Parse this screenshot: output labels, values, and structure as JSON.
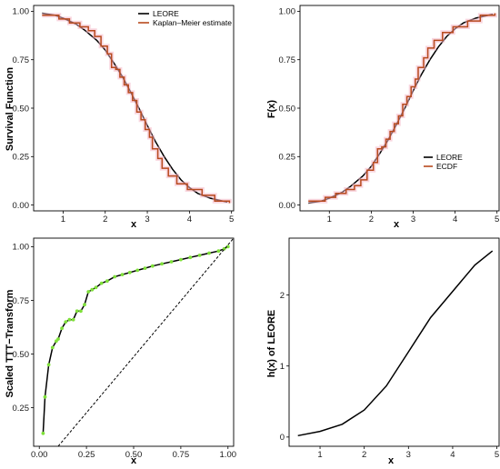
{
  "chart_data": [
    {
      "type": "line",
      "panel": "top-left",
      "xlabel": "x",
      "ylabel": "Survival Function",
      "xlim": [
        0.3,
        5.05
      ],
      "ylim": [
        -0.03,
        1.03
      ],
      "xticks": [
        "1",
        "2",
        "3",
        "4",
        "5"
      ],
      "yticks": [
        "0.00",
        "0.25",
        "0.50",
        "0.75",
        "1.00"
      ],
      "legend_position": "top-right",
      "series": [
        {
          "name": "LEORE",
          "color": "#000000",
          "style": "smooth",
          "x": [
            0.5,
            0.8,
            1.0,
            1.3,
            1.5,
            1.8,
            2.0,
            2.2,
            2.4,
            2.6,
            2.8,
            3.0,
            3.2,
            3.4,
            3.6,
            3.8,
            4.0,
            4.2,
            4.5,
            4.9
          ],
          "y": [
            0.99,
            0.98,
            0.965,
            0.935,
            0.905,
            0.85,
            0.8,
            0.735,
            0.665,
            0.585,
            0.5,
            0.41,
            0.325,
            0.25,
            0.185,
            0.13,
            0.09,
            0.06,
            0.035,
            0.015
          ]
        },
        {
          "name": "Kaplan–Meier estimate",
          "color": "#b84a1e",
          "style": "step",
          "x": [
            0.5,
            0.9,
            1.15,
            1.4,
            1.6,
            1.75,
            1.9,
            2.05,
            2.15,
            2.25,
            2.35,
            2.45,
            2.55,
            2.65,
            2.75,
            2.85,
            2.95,
            3.05,
            3.12,
            3.25,
            3.35,
            3.5,
            3.7,
            3.95,
            4.3,
            4.6,
            4.95
          ],
          "y": [
            0.98,
            0.96,
            0.94,
            0.92,
            0.9,
            0.87,
            0.82,
            0.78,
            0.71,
            0.7,
            0.66,
            0.62,
            0.58,
            0.54,
            0.48,
            0.44,
            0.39,
            0.35,
            0.29,
            0.24,
            0.19,
            0.15,
            0.11,
            0.08,
            0.05,
            0.02,
            0.01
          ]
        }
      ]
    },
    {
      "type": "line",
      "panel": "top-right",
      "xlabel": "x",
      "ylabel": "F(x)",
      "xlim": [
        0.3,
        5.05
      ],
      "ylim": [
        -0.03,
        1.03
      ],
      "xticks": [
        "1",
        "2",
        "3",
        "4",
        "5"
      ],
      "yticks": [
        "0.00",
        "0.25",
        "0.50",
        "0.75",
        "1.00"
      ],
      "legend_position": "bottom-right",
      "series": [
        {
          "name": "LEORE",
          "color": "#000000",
          "style": "smooth",
          "x": [
            0.5,
            0.8,
            1.0,
            1.3,
            1.5,
            1.8,
            2.0,
            2.2,
            2.4,
            2.6,
            2.8,
            3.0,
            3.2,
            3.4,
            3.6,
            3.8,
            4.0,
            4.2,
            4.5,
            4.9
          ],
          "y": [
            0.01,
            0.02,
            0.035,
            0.065,
            0.095,
            0.15,
            0.2,
            0.265,
            0.335,
            0.415,
            0.5,
            0.59,
            0.675,
            0.75,
            0.815,
            0.87,
            0.91,
            0.94,
            0.965,
            0.985
          ]
        },
        {
          "name": "ECDF",
          "color": "#b84a1e",
          "style": "step",
          "x": [
            0.5,
            0.9,
            1.15,
            1.4,
            1.6,
            1.75,
            1.9,
            2.05,
            2.15,
            2.25,
            2.35,
            2.45,
            2.55,
            2.65,
            2.75,
            2.85,
            2.95,
            3.05,
            3.12,
            3.25,
            3.35,
            3.5,
            3.7,
            3.95,
            4.3,
            4.6,
            4.95
          ],
          "y": [
            0.02,
            0.04,
            0.06,
            0.08,
            0.1,
            0.13,
            0.18,
            0.22,
            0.29,
            0.3,
            0.34,
            0.38,
            0.42,
            0.46,
            0.52,
            0.56,
            0.61,
            0.65,
            0.71,
            0.76,
            0.81,
            0.85,
            0.89,
            0.92,
            0.95,
            0.98,
            0.99
          ]
        }
      ]
    },
    {
      "type": "line",
      "panel": "bottom-left",
      "xlabel": "x",
      "ylabel": "Scaled TTT−Transform",
      "xlim": [
        -0.03,
        1.03
      ],
      "ylim": [
        0.07,
        1.04
      ],
      "xticks": [
        "0.00",
        "0.25",
        "0.50",
        "0.75",
        "1.00"
      ],
      "yticks": [
        "0.25",
        "0.50",
        "0.75",
        "1.00"
      ],
      "series": [
        {
          "color": "#000000",
          "point_color": "#7fe03a",
          "style": "path-with-points",
          "x": [
            0.02,
            0.03,
            0.05,
            0.07,
            0.09,
            0.1,
            0.12,
            0.14,
            0.16,
            0.18,
            0.2,
            0.22,
            0.24,
            0.26,
            0.28,
            0.3,
            0.33,
            0.36,
            0.4,
            0.44,
            0.48,
            0.52,
            0.56,
            0.6,
            0.65,
            0.7,
            0.75,
            0.8,
            0.85,
            0.9,
            0.95,
            0.98,
            1.0
          ],
          "y": [
            0.13,
            0.3,
            0.45,
            0.53,
            0.56,
            0.57,
            0.62,
            0.65,
            0.66,
            0.66,
            0.7,
            0.7,
            0.73,
            0.79,
            0.8,
            0.81,
            0.83,
            0.84,
            0.86,
            0.87,
            0.88,
            0.89,
            0.9,
            0.91,
            0.92,
            0.93,
            0.94,
            0.95,
            0.96,
            0.97,
            0.98,
            0.99,
            1.0
          ]
        },
        {
          "color": "#000000",
          "style": "dashed",
          "x": [
            0.1,
            1.03
          ],
          "y": [
            0.07,
            1.04
          ]
        }
      ]
    },
    {
      "type": "line",
      "panel": "bottom-right",
      "xlabel": "x",
      "ylabel": "h(x) of LEORE",
      "xlim": [
        0.3,
        5.05
      ],
      "ylim": [
        -0.13,
        2.8
      ],
      "xticks": [
        "1",
        "2",
        "3",
        "4",
        "5"
      ],
      "yticks": [
        "0",
        "1",
        "2"
      ],
      "series": [
        {
          "color": "#000000",
          "style": "smooth",
          "x": [
            0.5,
            1.0,
            1.5,
            2.0,
            2.5,
            3.0,
            3.5,
            4.0,
            4.5,
            4.9
          ],
          "y": [
            0.02,
            0.08,
            0.18,
            0.38,
            0.72,
            1.2,
            1.68,
            2.05,
            2.42,
            2.62
          ]
        }
      ]
    }
  ]
}
